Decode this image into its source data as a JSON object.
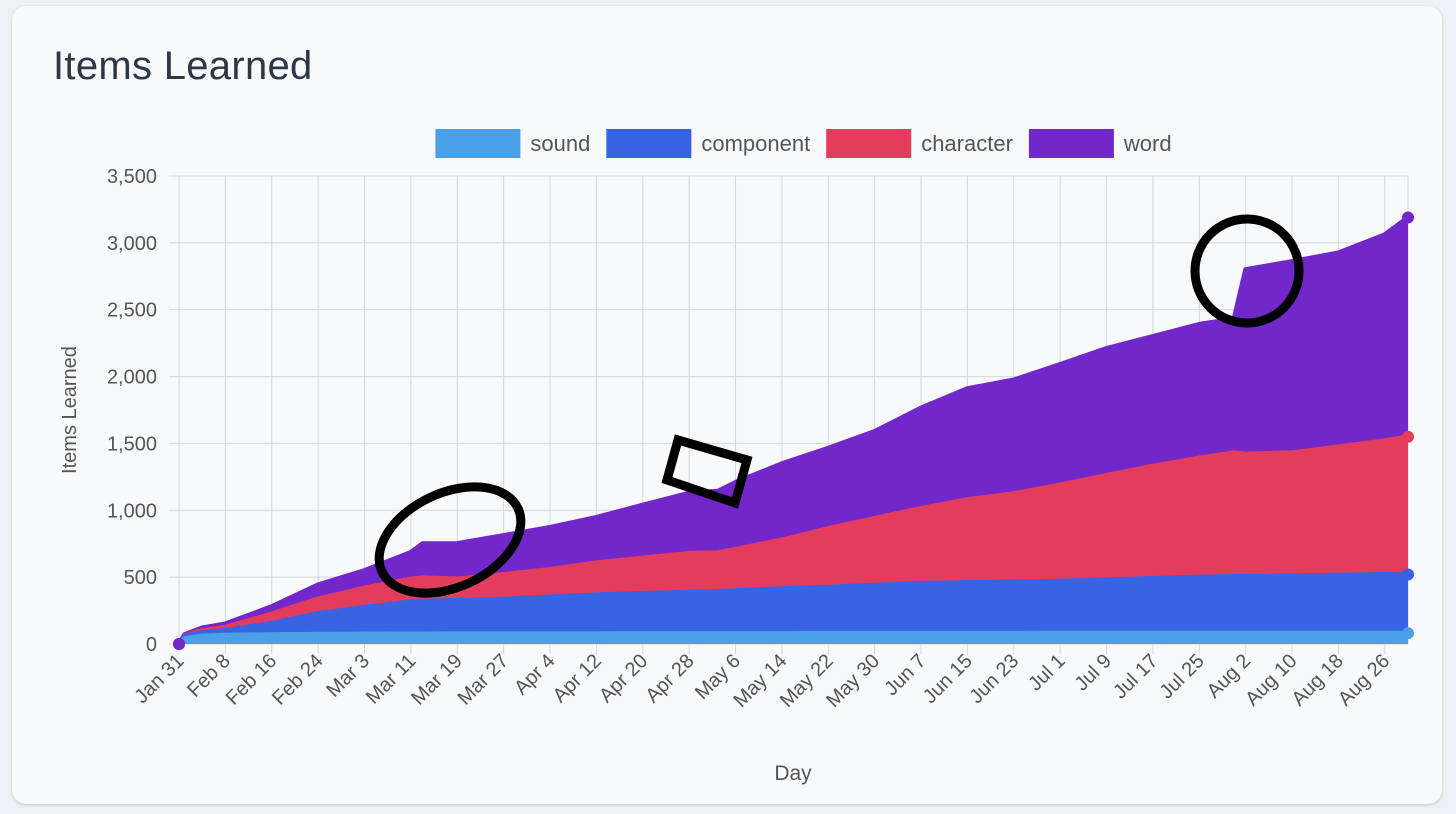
{
  "card": {
    "title": "Items Learned"
  },
  "chart_data": {
    "type": "area",
    "stacked": true,
    "xlabel": "Day",
    "ylabel": "Items Learned",
    "ylim": [
      0,
      3500
    ],
    "yticks": [
      0,
      500,
      1000,
      1500,
      2000,
      2500,
      3000,
      3500
    ],
    "ytick_labels": [
      "0",
      "500",
      "1,000",
      "1,500",
      "2,000",
      "2,500",
      "3,000",
      "3,500"
    ],
    "x_start": "Jan 31",
    "x_end": "Aug 30",
    "xtick_labels": [
      "Jan 31",
      "Feb 8",
      "Feb 16",
      "Feb 24",
      "Mar 3",
      "Mar 11",
      "Mar 19",
      "Mar 27",
      "Apr 4",
      "Apr 12",
      "Apr 20",
      "Apr 28",
      "May 6",
      "May 14",
      "May 22",
      "May 30",
      "Jun 7",
      "Jun 15",
      "Jun 23",
      "Jul 1",
      "Jul 9",
      "Jul 17",
      "Jul 25",
      "Aug 2",
      "Aug 10",
      "Aug 18",
      "Aug 26"
    ],
    "grid": true,
    "legend_position": "top",
    "x": [
      "Jan 31",
      "Feb 1",
      "Feb 4",
      "Feb 8",
      "Feb 16",
      "Feb 24",
      "Mar 3",
      "Mar 11",
      "Mar 13",
      "Mar 19",
      "Mar 25",
      "Apr 4",
      "Apr 12",
      "Apr 20",
      "Apr 28",
      "May 3",
      "May 6",
      "May 14",
      "May 22",
      "May 30",
      "Jun 7",
      "Jun 15",
      "Jun 23",
      "Jul 1",
      "Jul 9",
      "Jul 17",
      "Jul 25",
      "Jul 31",
      "Aug 2",
      "Aug 10",
      "Aug 18",
      "Aug 26",
      "Aug 30"
    ],
    "series": [
      {
        "name": "sound",
        "color": "#4aa0e6",
        "values": [
          0,
          40,
          60,
          65,
          70,
          72,
          74,
          75,
          75,
          76,
          76,
          77,
          77,
          78,
          78,
          78,
          78,
          78,
          79,
          79,
          79,
          79,
          79,
          80,
          80,
          80,
          80,
          80,
          80,
          80,
          80,
          80,
          80
        ]
      },
      {
        "name": "component",
        "color": "#3864e4",
        "values": [
          0,
          15,
          25,
          35,
          85,
          155,
          200,
          240,
          245,
          250,
          255,
          275,
          290,
          300,
          310,
          315,
          320,
          335,
          345,
          360,
          375,
          380,
          385,
          390,
          400,
          410,
          420,
          425,
          425,
          430,
          435,
          440,
          440
        ]
      },
      {
        "name": "character",
        "color": "#e43c5c",
        "values": [
          0,
          5,
          15,
          25,
          70,
          110,
          145,
          170,
          175,
          160,
          180,
          205,
          240,
          265,
          290,
          290,
          310,
          365,
          440,
          500,
          560,
          620,
          660,
          720,
          780,
          840,
          890,
          925,
          915,
          920,
          960,
          1000,
          1030
        ]
      },
      {
        "name": "word",
        "color": "#7127c9",
        "values": [
          0,
          10,
          20,
          25,
          55,
          105,
          130,
          200,
          255,
          265,
          285,
          315,
          340,
          395,
          450,
          460,
          500,
          570,
          600,
          650,
          750,
          830,
          850,
          900,
          950,
          970,
          1000,
          1000,
          1380,
          1430,
          1450,
          1540,
          1640
        ]
      }
    ]
  }
}
